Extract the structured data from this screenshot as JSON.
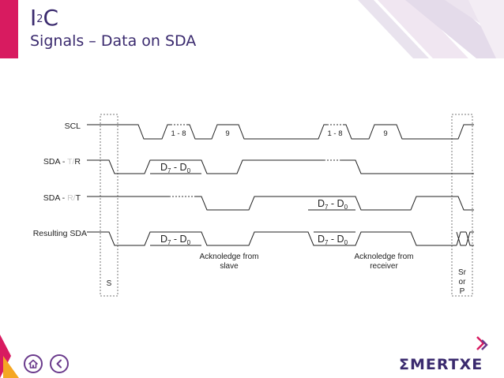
{
  "header": {
    "title_main": "I",
    "title_sup": "2",
    "title_suffix": "C",
    "subtitle": "Signals – Data on SDA"
  },
  "diagram": {
    "signals": {
      "scl": "SCL",
      "sda_tr_prefix": "SDA - ",
      "sda_tr_faded": "T/",
      "sda_tr_suffix": "R",
      "sda_rt_prefix": "SDA - ",
      "sda_rt_faded": "R/",
      "sda_rt_suffix": "T",
      "resulting": "Resulting SDA"
    },
    "pulse_labels": {
      "first_group": "1 - 8",
      "first_ack": "9",
      "second_group": "1 - 8",
      "second_ack": "9"
    },
    "data_label": {
      "d7": "D",
      "sub7": "7",
      "dash": " - ",
      "d0": "D",
      "sub0": "0"
    },
    "annotations": {
      "ack_slave_line1": "Acknoledge from",
      "ack_slave_line2": "slave",
      "ack_receiver_line1": "Acknoledge from",
      "ack_receiver_line2": "receiver"
    },
    "markers": {
      "start": "S",
      "end_line1": "Sr",
      "end_line2": "or",
      "end_line3": "P"
    }
  },
  "footer": {
    "brand": "MERTXE",
    "brand_sigma": "Σ"
  },
  "colors": {
    "accent": "#d81b60",
    "brand": "#3a2a6e",
    "nav": "#6a3a8c",
    "faded_text": "#c9c9c9"
  }
}
